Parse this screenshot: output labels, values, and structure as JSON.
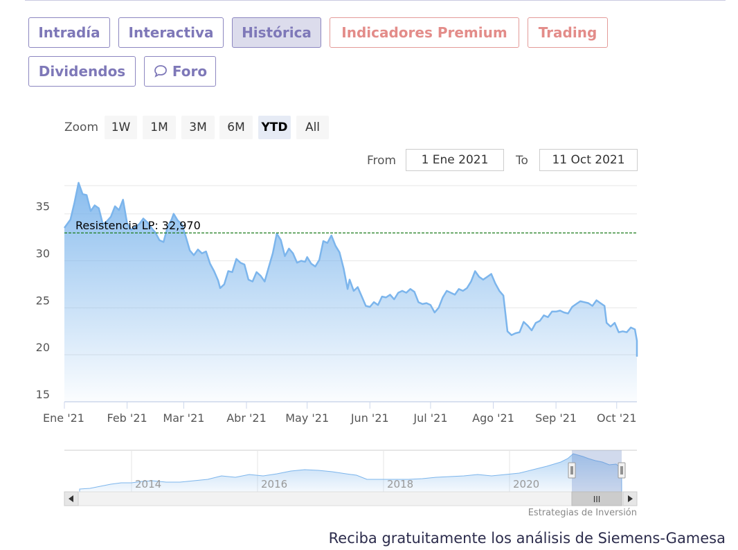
{
  "tabs": [
    {
      "label": "Intradía",
      "style": "purple"
    },
    {
      "label": "Interactiva",
      "style": "purple"
    },
    {
      "label": "Histórica",
      "style": "active"
    },
    {
      "label": "Indicadores Premium",
      "style": "red"
    },
    {
      "label": "Trading",
      "style": "red"
    },
    {
      "label": "Dividendos",
      "style": "purple"
    },
    {
      "label": "Foro",
      "style": "purple",
      "icon": "speech-bubbles-icon"
    }
  ],
  "zoom": {
    "label": "Zoom",
    "options": [
      "1W",
      "1M",
      "3M",
      "6M",
      "YTD",
      "All"
    ],
    "selected": "YTD"
  },
  "range": {
    "from_label": "From",
    "from_value": "1 Ene 2021",
    "to_label": "To",
    "to_value": "11 Oct 2021"
  },
  "navigator": {
    "year_labels": [
      "2014",
      "2016",
      "2018",
      "2020"
    ],
    "scroll_grip": "III"
  },
  "colors": {
    "line": "#7cb5ec",
    "fill_top": "#7cb5ec",
    "resistance": "#1a7a1a",
    "tab_purple": "#7e78b8",
    "tab_red": "#e38c89"
  },
  "credit": "Estrategias de Inversión",
  "cta": "Reciba gratuitamente los análisis de Siemens-Gamesa",
  "chart_data": {
    "type": "area",
    "title": "",
    "xlabel": "",
    "ylabel": "",
    "ylim": [
      15,
      38
    ],
    "y_ticks": [
      15,
      20,
      25,
      30,
      35
    ],
    "x_tick_labels": [
      "Ene '21",
      "Feb '21",
      "Mar '21",
      "Abr '21",
      "May '21",
      "Jun '21",
      "Jul '21",
      "Ago '21",
      "Sep '21",
      "Oct '21"
    ],
    "xlim": [
      "2021-01-01",
      "2021-10-11"
    ],
    "grid": true,
    "legend": "none",
    "resistance": {
      "label": "Resistencia LP: 32,970",
      "value": 32.97
    },
    "series": [
      {
        "values": [
          [
            "2021-01-01",
            33.5
          ],
          [
            "2021-01-04",
            34.4
          ],
          [
            "2021-01-06",
            36.2
          ],
          [
            "2021-01-08",
            38.3
          ],
          [
            "2021-01-10",
            37.1
          ],
          [
            "2021-01-12",
            37.0
          ],
          [
            "2021-01-14",
            35.3
          ],
          [
            "2021-01-16",
            35.9
          ],
          [
            "2021-01-18",
            35.6
          ],
          [
            "2021-01-20",
            33.9
          ],
          [
            "2021-01-22",
            34.2
          ],
          [
            "2021-01-24",
            34.7
          ],
          [
            "2021-01-26",
            35.8
          ],
          [
            "2021-01-28",
            35.4
          ],
          [
            "2021-01-30",
            36.5
          ],
          [
            "2021-02-01",
            34.0
          ],
          [
            "2021-02-03",
            33.3
          ],
          [
            "2021-02-05",
            33.6
          ],
          [
            "2021-02-07",
            33.9
          ],
          [
            "2021-02-09",
            34.5
          ],
          [
            "2021-02-11",
            34.1
          ],
          [
            "2021-02-13",
            33.5
          ],
          [
            "2021-02-15",
            33.0
          ],
          [
            "2021-02-17",
            32.2
          ],
          [
            "2021-02-19",
            32.0
          ],
          [
            "2021-02-21",
            33.6
          ],
          [
            "2021-02-23",
            34.4
          ],
          [
            "2021-02-24",
            35.0
          ],
          [
            "2021-02-26",
            34.3
          ],
          [
            "2021-02-28",
            33.9
          ],
          [
            "2021-03-02",
            32.6
          ],
          [
            "2021-03-04",
            31.1
          ],
          [
            "2021-03-06",
            30.6
          ],
          [
            "2021-03-08",
            31.2
          ],
          [
            "2021-03-10",
            30.8
          ],
          [
            "2021-03-12",
            31.0
          ],
          [
            "2021-03-14",
            29.7
          ],
          [
            "2021-03-16",
            28.9
          ],
          [
            "2021-03-18",
            27.9
          ],
          [
            "2021-03-19",
            27.1
          ],
          [
            "2021-03-21",
            27.5
          ],
          [
            "2021-03-23",
            28.9
          ],
          [
            "2021-03-25",
            28.8
          ],
          [
            "2021-03-27",
            30.2
          ],
          [
            "2021-03-29",
            29.8
          ],
          [
            "2021-03-31",
            29.6
          ],
          [
            "2021-04-02",
            28.0
          ],
          [
            "2021-04-04",
            27.8
          ],
          [
            "2021-04-06",
            28.8
          ],
          [
            "2021-04-08",
            28.4
          ],
          [
            "2021-04-10",
            27.8
          ],
          [
            "2021-04-12",
            29.3
          ],
          [
            "2021-04-14",
            30.8
          ],
          [
            "2021-04-16",
            32.9
          ],
          [
            "2021-04-18",
            32.2
          ],
          [
            "2021-04-20",
            30.5
          ],
          [
            "2021-04-22",
            31.3
          ],
          [
            "2021-04-24",
            30.8
          ],
          [
            "2021-04-26",
            29.8
          ],
          [
            "2021-04-28",
            30.0
          ],
          [
            "2021-04-30",
            29.9
          ],
          [
            "2021-05-01",
            30.4
          ],
          [
            "2021-05-03",
            29.7
          ],
          [
            "2021-05-05",
            29.4
          ],
          [
            "2021-05-07",
            30.1
          ],
          [
            "2021-05-09",
            32.1
          ],
          [
            "2021-05-11",
            31.9
          ],
          [
            "2021-05-13",
            32.7
          ],
          [
            "2021-05-15",
            31.6
          ],
          [
            "2021-05-17",
            30.9
          ],
          [
            "2021-05-19",
            29.2
          ],
          [
            "2021-05-21",
            27.0
          ],
          [
            "2021-05-22",
            28.0
          ],
          [
            "2021-05-24",
            26.8
          ],
          [
            "2021-05-26",
            27.2
          ],
          [
            "2021-05-28",
            26.2
          ],
          [
            "2021-05-30",
            25.2
          ],
          [
            "2021-06-01",
            25.1
          ],
          [
            "2021-06-03",
            25.6
          ],
          [
            "2021-06-05",
            25.3
          ],
          [
            "2021-06-07",
            26.2
          ],
          [
            "2021-06-09",
            26.1
          ],
          [
            "2021-06-11",
            26.4
          ],
          [
            "2021-06-13",
            25.9
          ],
          [
            "2021-06-15",
            26.6
          ],
          [
            "2021-06-17",
            26.8
          ],
          [
            "2021-06-19",
            26.6
          ],
          [
            "2021-06-21",
            27.0
          ],
          [
            "2021-06-23",
            26.7
          ],
          [
            "2021-06-25",
            25.6
          ],
          [
            "2021-06-27",
            25.4
          ],
          [
            "2021-06-29",
            25.5
          ],
          [
            "2021-07-01",
            25.3
          ],
          [
            "2021-07-03",
            24.5
          ],
          [
            "2021-07-05",
            25.0
          ],
          [
            "2021-07-07",
            26.1
          ],
          [
            "2021-07-09",
            26.8
          ],
          [
            "2021-07-11",
            26.6
          ],
          [
            "2021-07-13",
            26.4
          ],
          [
            "2021-07-15",
            27.0
          ],
          [
            "2021-07-17",
            26.8
          ],
          [
            "2021-07-19",
            27.1
          ],
          [
            "2021-07-21",
            27.8
          ],
          [
            "2021-07-23",
            28.9
          ],
          [
            "2021-07-25",
            28.3
          ],
          [
            "2021-07-27",
            28.0
          ],
          [
            "2021-07-29",
            28.3
          ],
          [
            "2021-07-31",
            28.6
          ],
          [
            "2021-08-02",
            27.6
          ],
          [
            "2021-08-04",
            26.8
          ],
          [
            "2021-08-06",
            26.3
          ],
          [
            "2021-08-08",
            22.5
          ],
          [
            "2021-08-10",
            22.1
          ],
          [
            "2021-08-12",
            22.3
          ],
          [
            "2021-08-14",
            22.4
          ],
          [
            "2021-08-16",
            23.5
          ],
          [
            "2021-08-18",
            23.1
          ],
          [
            "2021-08-20",
            22.6
          ],
          [
            "2021-08-22",
            23.4
          ],
          [
            "2021-08-24",
            23.6
          ],
          [
            "2021-08-26",
            24.2
          ],
          [
            "2021-08-28",
            24.0
          ],
          [
            "2021-08-30",
            24.6
          ],
          [
            "2021-09-01",
            24.6
          ],
          [
            "2021-09-03",
            24.7
          ],
          [
            "2021-09-05",
            24.5
          ],
          [
            "2021-09-07",
            24.4
          ],
          [
            "2021-09-09",
            25.1
          ],
          [
            "2021-09-11",
            25.4
          ],
          [
            "2021-09-13",
            25.7
          ],
          [
            "2021-09-15",
            25.6
          ],
          [
            "2021-09-17",
            25.5
          ],
          [
            "2021-09-19",
            25.2
          ],
          [
            "2021-09-21",
            25.8
          ],
          [
            "2021-09-23",
            25.5
          ],
          [
            "2021-09-25",
            25.2
          ],
          [
            "2021-09-26",
            23.4
          ],
          [
            "2021-09-28",
            23.0
          ],
          [
            "2021-09-30",
            23.4
          ],
          [
            "2021-10-02",
            22.4
          ],
          [
            "2021-10-04",
            22.5
          ],
          [
            "2021-10-06",
            22.4
          ],
          [
            "2021-10-08",
            22.9
          ],
          [
            "2021-10-10",
            22.7
          ],
          [
            "2021-10-11",
            21.5
          ],
          [
            "2021-10-12",
            20.8
          ],
          [
            "2021-10-13",
            20.2
          ],
          [
            "2021-10-14",
            20.3
          ],
          [
            "2021-10-15",
            19.8
          ]
        ]
      }
    ]
  }
}
